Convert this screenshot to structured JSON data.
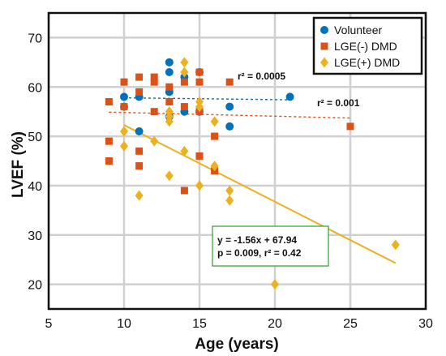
{
  "chart_data": {
    "type": "scatter",
    "title": "",
    "xlabel": "Age (years)",
    "ylabel": "LVEF (%)",
    "xlim": [
      5,
      30
    ],
    "ylim": [
      15,
      75
    ],
    "xticks": [
      5,
      10,
      15,
      20,
      25,
      30
    ],
    "yticks": [
      20,
      30,
      40,
      50,
      60,
      70
    ],
    "grid": true,
    "legend_position": "top-right",
    "series": [
      {
        "name": "Volunteer",
        "marker": "circle",
        "color": "#0072BD",
        "points": [
          [
            10,
            56
          ],
          [
            10,
            58
          ],
          [
            11,
            51
          ],
          [
            11,
            58
          ],
          [
            13,
            59
          ],
          [
            13,
            63
          ],
          [
            13,
            65
          ],
          [
            13,
            54
          ],
          [
            14,
            55
          ],
          [
            14,
            62
          ],
          [
            15,
            63
          ],
          [
            15,
            55
          ],
          [
            17,
            52
          ],
          [
            17,
            56
          ],
          [
            21,
            58
          ]
        ]
      },
      {
        "name": "LGE(-) DMD",
        "marker": "square",
        "color": "#D95319",
        "points": [
          [
            9,
            57
          ],
          [
            9,
            49
          ],
          [
            9,
            45
          ],
          [
            10,
            61
          ],
          [
            10,
            56
          ],
          [
            11,
            62
          ],
          [
            11,
            59
          ],
          [
            11,
            47
          ],
          [
            11,
            44
          ],
          [
            12,
            62
          ],
          [
            12,
            61
          ],
          [
            12,
            55
          ],
          [
            13,
            60
          ],
          [
            13,
            57
          ],
          [
            14,
            61
          ],
          [
            14,
            56
          ],
          [
            14,
            39
          ],
          [
            15,
            63
          ],
          [
            15,
            61
          ],
          [
            15,
            55
          ],
          [
            15,
            46
          ],
          [
            16,
            50
          ],
          [
            16,
            43
          ],
          [
            17,
            61
          ],
          [
            25,
            52
          ]
        ]
      },
      {
        "name": "LGE(+) DMD",
        "marker": "diamond",
        "color": "#EDB120",
        "points": [
          [
            10,
            51
          ],
          [
            10,
            48
          ],
          [
            11,
            38
          ],
          [
            12,
            49
          ],
          [
            13,
            55
          ],
          [
            13,
            54
          ],
          [
            13,
            53
          ],
          [
            13,
            42
          ],
          [
            14,
            65
          ],
          [
            14,
            63
          ],
          [
            14,
            47
          ],
          [
            15,
            57
          ],
          [
            15,
            56
          ],
          [
            15,
            40
          ],
          [
            16,
            53
          ],
          [
            16,
            44
          ],
          [
            17,
            39
          ],
          [
            17,
            37
          ],
          [
            20,
            20
          ],
          [
            28,
            28
          ]
        ]
      }
    ],
    "fits": [
      {
        "series": "Volunteer",
        "style": "dashed",
        "x": [
          10,
          21
        ],
        "y": [
          57.8,
          57.4
        ],
        "label": "r² = 0.0005"
      },
      {
        "series": "LGE(-) DMD",
        "style": "dashed",
        "x": [
          9,
          25
        ],
        "y": [
          54.9,
          53.7
        ],
        "label": "r² = 0.001"
      },
      {
        "series": "LGE(+) DMD",
        "style": "solid",
        "x": [
          10,
          28
        ],
        "y": [
          52.3,
          24.3
        ],
        "label_lines": [
          "y = -1.56x + 67.94",
          "p = 0.009, r² = 0.42"
        ]
      }
    ]
  }
}
